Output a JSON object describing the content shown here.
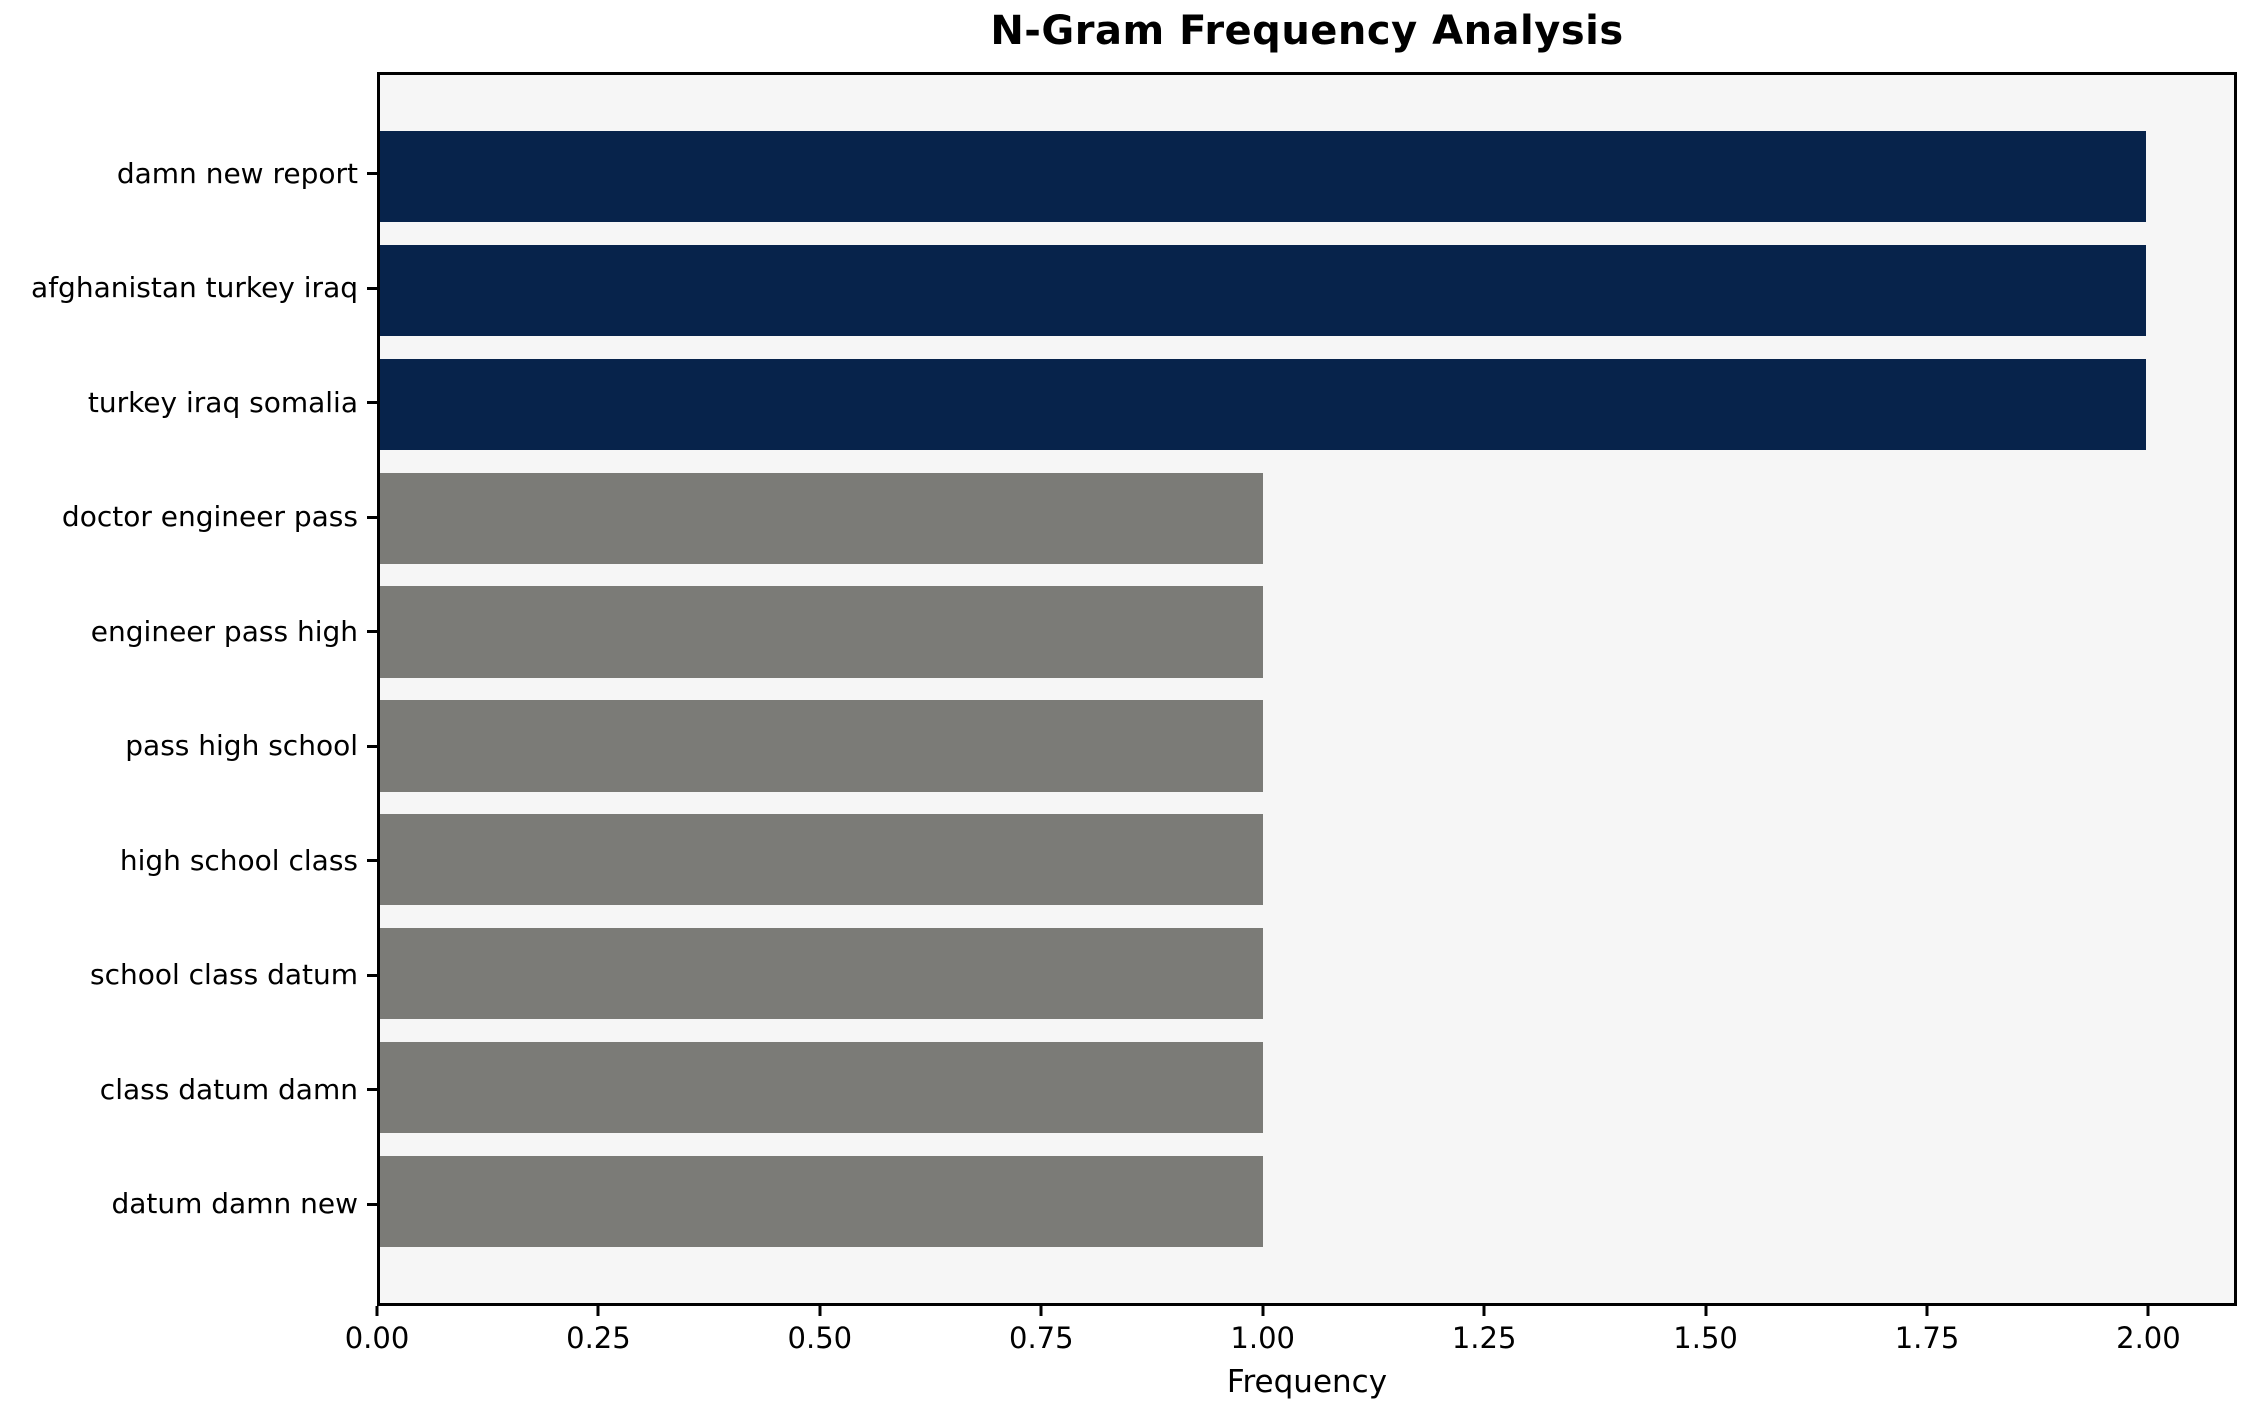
{
  "chart_data": {
    "type": "bar",
    "orientation": "horizontal",
    "title": "N-Gram Frequency Analysis",
    "xlabel": "Frequency",
    "ylabel": "",
    "categories": [
      "damn new report",
      "afghanistan turkey iraq",
      "turkey iraq somalia",
      "doctor engineer pass",
      "engineer pass high",
      "pass high school",
      "high school class",
      "school class datum",
      "class datum damn",
      "datum damn new"
    ],
    "values": [
      2,
      2,
      2,
      1,
      1,
      1,
      1,
      1,
      1,
      1
    ],
    "bar_colors": [
      "#07234b",
      "#07234b",
      "#07234b",
      "#7b7b77",
      "#7b7b77",
      "#7b7b77",
      "#7b7b77",
      "#7b7b77",
      "#7b7b77",
      "#7b7b77"
    ],
    "xlim": [
      0,
      2.1
    ],
    "xticks": [
      {
        "value": 0.0,
        "label": "0.00"
      },
      {
        "value": 0.25,
        "label": "0.25"
      },
      {
        "value": 0.5,
        "label": "0.50"
      },
      {
        "value": 0.75,
        "label": "0.75"
      },
      {
        "value": 1.0,
        "label": "1.00"
      },
      {
        "value": 1.25,
        "label": "1.25"
      },
      {
        "value": 1.5,
        "label": "1.50"
      },
      {
        "value": 1.75,
        "label": "1.75"
      },
      {
        "value": 2.0,
        "label": "2.00"
      }
    ],
    "grid": false,
    "legend": null,
    "colors": {
      "highlight_bar": "#07234b",
      "default_bar": "#7b7b77",
      "plot_background": "#f6f6f6",
      "figure_background": "#ffffff",
      "spine": "#000000",
      "text": "#000000"
    }
  }
}
